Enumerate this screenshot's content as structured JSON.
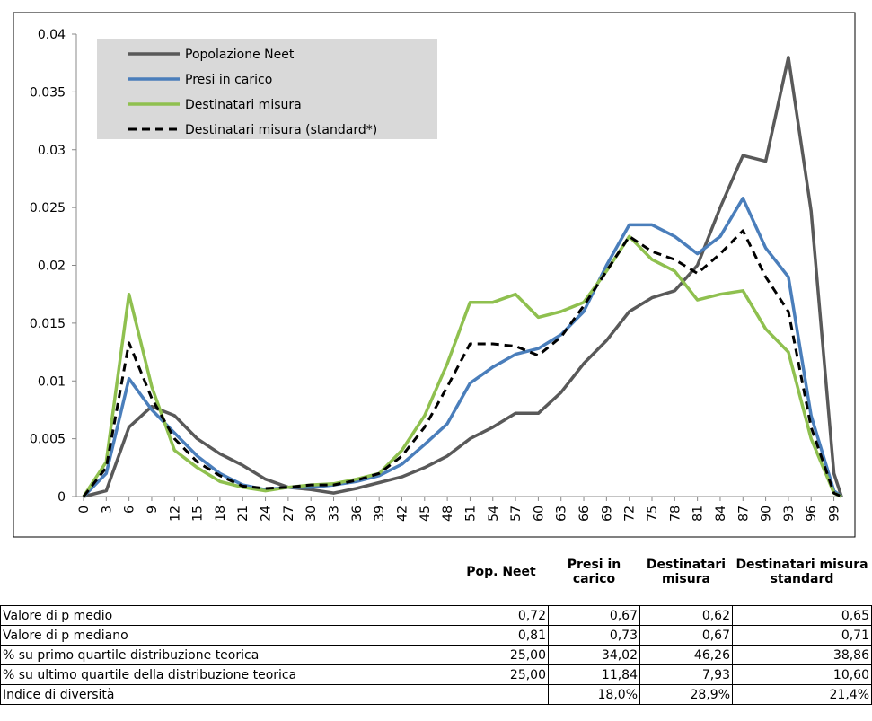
{
  "chart_data": {
    "type": "line",
    "x": [
      0,
      3,
      6,
      9,
      12,
      15,
      18,
      21,
      24,
      27,
      30,
      33,
      36,
      39,
      42,
      45,
      48,
      51,
      54,
      57,
      60,
      63,
      66,
      69,
      72,
      75,
      78,
      81,
      84,
      87,
      90,
      93,
      96,
      99,
      100
    ],
    "series": [
      {
        "name": "Popolazione Neet",
        "color": "#595959",
        "dash": false,
        "values": [
          0,
          0.0005,
          0.006,
          0.0078,
          0.007,
          0.005,
          0.0037,
          0.0027,
          0.0015,
          0.0008,
          0.0006,
          0.0003,
          0.0007,
          0.0012,
          0.0017,
          0.0025,
          0.0035,
          0.005,
          0.006,
          0.0072,
          0.0072,
          0.009,
          0.0115,
          0.0135,
          0.016,
          0.0172,
          0.0178,
          0.02,
          0.025,
          0.0295,
          0.029,
          0.038,
          0.0247,
          0.002,
          0
        ]
      },
      {
        "name": "Presi in carico",
        "color": "#4a7ebb",
        "dash": false,
        "values": [
          0,
          0.002,
          0.0102,
          0.0075,
          0.0055,
          0.0035,
          0.002,
          0.001,
          0.0006,
          0.0008,
          0.0008,
          0.001,
          0.0013,
          0.0018,
          0.0028,
          0.0045,
          0.0063,
          0.0098,
          0.0112,
          0.0123,
          0.0128,
          0.014,
          0.016,
          0.02,
          0.0235,
          0.0235,
          0.0225,
          0.021,
          0.0225,
          0.0258,
          0.0215,
          0.019,
          0.007,
          0.0005,
          0
        ]
      },
      {
        "name": "Destinatari misura",
        "color": "#8fc04f",
        "dash": false,
        "values": [
          0,
          0.003,
          0.0175,
          0.0095,
          0.004,
          0.0025,
          0.0013,
          0.0008,
          0.0005,
          0.0008,
          0.001,
          0.0011,
          0.0015,
          0.002,
          0.004,
          0.007,
          0.0115,
          0.0168,
          0.0168,
          0.0175,
          0.0155,
          0.016,
          0.0168,
          0.0195,
          0.0225,
          0.0205,
          0.0195,
          0.017,
          0.0175,
          0.0178,
          0.0145,
          0.0125,
          0.005,
          0.0003,
          0
        ]
      },
      {
        "name": "Destinatari misura (standard*)",
        "color": "#000000",
        "dash": true,
        "values": [
          0,
          0.0025,
          0.0133,
          0.0085,
          0.005,
          0.003,
          0.0018,
          0.0009,
          0.0007,
          0.0008,
          0.001,
          0.001,
          0.0014,
          0.002,
          0.0035,
          0.006,
          0.0095,
          0.0132,
          0.0132,
          0.013,
          0.0122,
          0.0138,
          0.0165,
          0.0195,
          0.0225,
          0.0212,
          0.0205,
          0.0193,
          0.021,
          0.023,
          0.019,
          0.016,
          0.006,
          0.0003,
          0
        ]
      }
    ],
    "xlim": [
      0,
      100
    ],
    "xticks": [
      0,
      3,
      6,
      9,
      12,
      15,
      18,
      21,
      24,
      27,
      30,
      33,
      36,
      39,
      42,
      45,
      48,
      51,
      54,
      57,
      60,
      63,
      66,
      69,
      72,
      75,
      78,
      81,
      84,
      87,
      90,
      93,
      96,
      99
    ],
    "ylim": [
      0,
      0.04
    ],
    "yticks": [
      0,
      0.005,
      0.01,
      0.015,
      0.02,
      0.025,
      0.03,
      0.035,
      0.04
    ],
    "grid": false,
    "legend": "upper left"
  },
  "table": {
    "header": [
      null,
      "Pop. Neet",
      "Presi in carico",
      "Destinatari misura",
      "Destinatari misura standard"
    ],
    "rows": [
      [
        "Valore di p medio",
        "0,72",
        "0,67",
        "0,62",
        "0,65"
      ],
      [
        "Valore di p mediano",
        "0,81",
        "0,73",
        "0,67",
        "0,71"
      ],
      [
        "% su primo quartile distribuzione teorica",
        "25,00",
        "34,02",
        "46,26",
        "38,86"
      ],
      [
        "% su ultimo quartile della distribuzione teorica",
        "25,00",
        "11,84",
        "7,93",
        "10,60"
      ],
      [
        "Indice di diversità",
        null,
        "18,0%",
        "28,9%",
        "21,4%"
      ]
    ]
  }
}
